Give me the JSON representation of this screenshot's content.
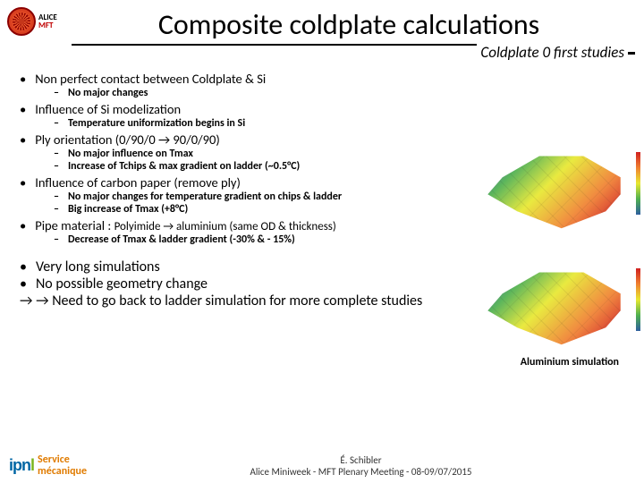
{
  "logo": {
    "line1": "ALICE",
    "line2": "MFT"
  },
  "title": "Composite coldplate calculations",
  "subtitle": "Coldplate 0 first studies",
  "bullets": [
    {
      "text": "Non perfect contact between Coldplate & Si",
      "subs": [
        "No major changes"
      ]
    },
    {
      "text": "Influence of Si modelization",
      "subs": [
        "Temperature uniformization begins in Si"
      ]
    },
    {
      "text": "Ply orientation (0/90/0 → 90/0/90)",
      "subs": [
        "No major influence on Tmax",
        "Increase of Tchips & max gradient on ladder (~0.5°C)"
      ]
    },
    {
      "text": "Influence of carbon paper (remove ply)",
      "subs": [
        "No major changes for temperature gradient on chips & ladder",
        "Big increase of Tmax  (+8°C)"
      ]
    },
    {
      "text": "Pipe material : ",
      "inline": "Polyimide → aluminium (same  OD & thickness)",
      "subs": [
        "Decrease of Tmax & ladder gradient (-30% & - 15%)"
      ]
    }
  ],
  "conclusion": {
    "l1": "Very long simulations",
    "l2": "No possible geometry change",
    "l3": "Need to go back to ladder simulation for more complete studies"
  },
  "sim_label": "Aluminium simulation",
  "footer": {
    "ipnl": "ipnl",
    "service_l1": "Service",
    "service_l2": "mécanique",
    "author": "É. Schibler",
    "meeting": "Alice Miniweek -  MFT Plenary Meeting - 08-09/07/2015"
  },
  "colors": {
    "accent_red": "#c00000",
    "service_orange": "#e07b00",
    "ipnl_blue": "#0066a4",
    "ipnl_green": "#7ab51d"
  }
}
